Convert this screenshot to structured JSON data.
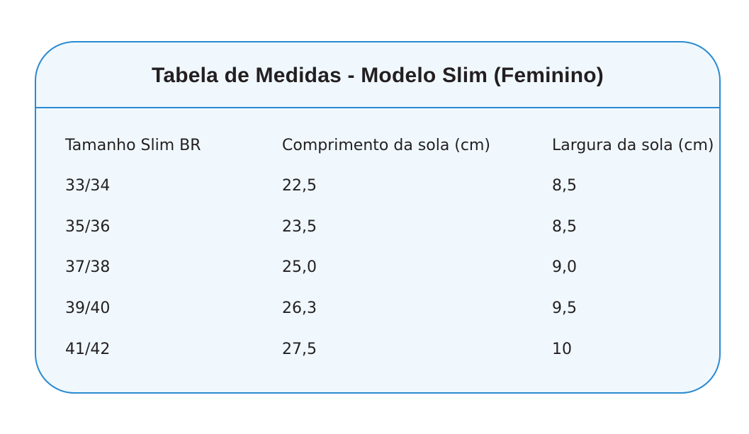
{
  "title": "Tabela de Medidas - Modelo Slim (Feminino)",
  "table": {
    "headers": [
      "Tamanho Slim BR",
      "Comprimento da sola (cm)",
      "Largura da sola (cm)"
    ],
    "rows": [
      [
        "33/34",
        "22,5",
        "8,5"
      ],
      [
        "35/36",
        "23,5",
        "8,5"
      ],
      [
        "37/38",
        "25,0",
        "9,0"
      ],
      [
        "39/40",
        "26,3",
        "9,5"
      ],
      [
        "41/42",
        "27,5",
        "10"
      ]
    ]
  },
  "colors": {
    "border": "#2a8ad0",
    "background": "#f0f8fe",
    "text": "#231f20"
  }
}
